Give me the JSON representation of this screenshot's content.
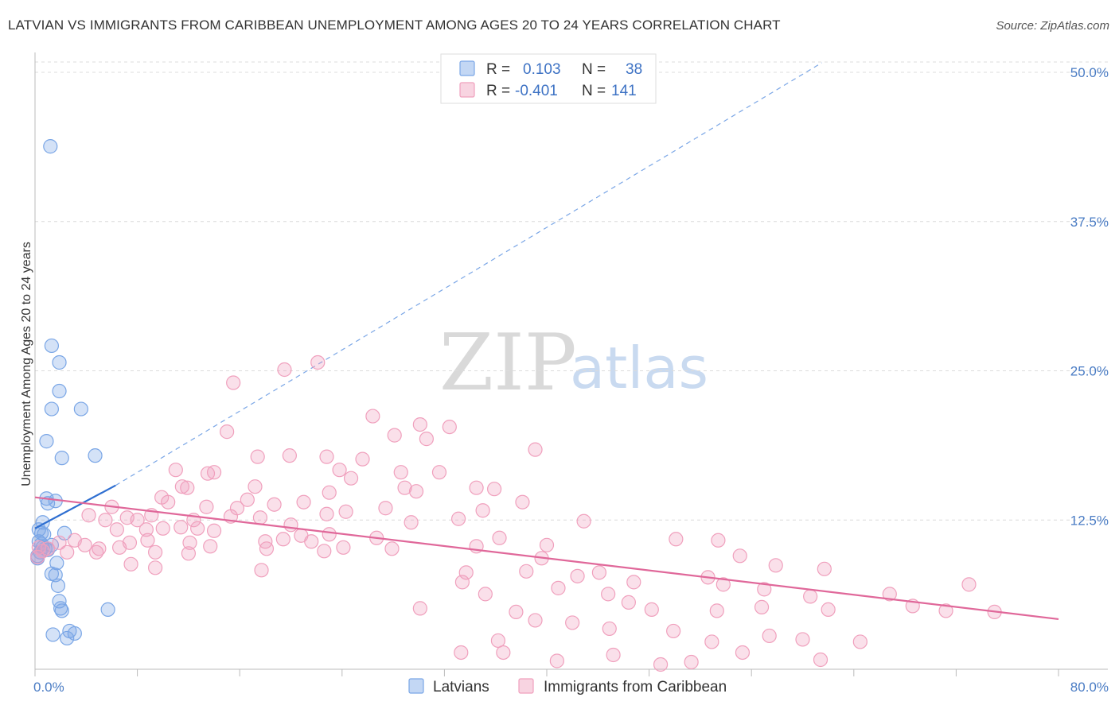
{
  "title": "LATVIAN VS IMMIGRANTS FROM CARIBBEAN UNEMPLOYMENT AMONG AGES 20 TO 24 YEARS CORRELATION CHART",
  "source": "Source: ZipAtlas.com",
  "watermark": {
    "zip": "ZIP",
    "atlas": "atlas"
  },
  "legend": {
    "r_label": "R =",
    "n_label": "N =",
    "rows": [
      {
        "r": "0.103",
        "n": "38",
        "color": "#7aa6e6"
      },
      {
        "r": "-0.401",
        "n": "141",
        "color": "#f0a0bd"
      }
    ]
  },
  "chart_data": {
    "type": "scatter",
    "xlabel": "",
    "ylabel": "Unemployment Among Ages 20 to 24 years",
    "xlim": [
      0,
      80
    ],
    "ylim": [
      0,
      50
    ],
    "x_tick_labels": [
      "0.0%",
      "80.0%"
    ],
    "y_tick_labels": [
      "12.5%",
      "25.0%",
      "37.5%",
      "50.0%"
    ],
    "y_ticks": [
      12.5,
      25,
      37.5,
      50
    ],
    "grid": true,
    "legend_placement": "top-center",
    "series": [
      {
        "name": "Latvians",
        "color": "#7aa6e6",
        "trend": {
          "x": [
            0,
            6.3
          ],
          "y": [
            11.8,
            15.4
          ],
          "extended": {
            "x": [
              6.3,
              61.5
            ],
            "y": [
              15.4,
              50.8
            ]
          }
        },
        "points": [
          [
            1.2,
            43.8
          ],
          [
            1.3,
            27.1
          ],
          [
            1.9,
            25.7
          ],
          [
            1.9,
            23.3
          ],
          [
            1.3,
            21.8
          ],
          [
            3.6,
            21.8
          ],
          [
            0.9,
            19.1
          ],
          [
            2.1,
            17.7
          ],
          [
            4.7,
            17.9
          ],
          [
            0.9,
            14.3
          ],
          [
            1.0,
            13.9
          ],
          [
            1.6,
            14.1
          ],
          [
            0.6,
            12.3
          ],
          [
            0.3,
            11.7
          ],
          [
            0.5,
            11.4
          ],
          [
            0.7,
            11.3
          ],
          [
            2.3,
            11.4
          ],
          [
            0.3,
            10.7
          ],
          [
            0.5,
            10.5
          ],
          [
            0.6,
            10.2
          ],
          [
            0.8,
            10.1
          ],
          [
            1.0,
            10.0
          ],
          [
            1.3,
            10.4
          ],
          [
            0.4,
            9.8
          ],
          [
            0.2,
            9.5
          ],
          [
            1.7,
            8.9
          ],
          [
            1.3,
            8.0
          ],
          [
            1.6,
            7.9
          ],
          [
            1.8,
            7.0
          ],
          [
            1.9,
            5.7
          ],
          [
            2.0,
            5.1
          ],
          [
            2.1,
            4.9
          ],
          [
            5.7,
            5.0
          ],
          [
            2.7,
            3.2
          ],
          [
            3.1,
            3.0
          ],
          [
            1.4,
            2.9
          ],
          [
            2.5,
            2.6
          ],
          [
            0.2,
            9.3
          ]
        ]
      },
      {
        "name": "Immigrants from Caribbean",
        "color": "#f0a0bd",
        "trend": {
          "x": [
            0,
            80
          ],
          "y": [
            14.4,
            4.2
          ]
        },
        "points": [
          [
            22.1,
            25.7
          ],
          [
            19.5,
            25.1
          ],
          [
            15.5,
            24.0
          ],
          [
            26.4,
            21.2
          ],
          [
            30.1,
            20.5
          ],
          [
            32.4,
            20.3
          ],
          [
            30.6,
            19.3
          ],
          [
            28.1,
            19.6
          ],
          [
            15.0,
            19.9
          ],
          [
            39.1,
            18.4
          ],
          [
            17.4,
            17.8
          ],
          [
            19.9,
            17.9
          ],
          [
            22.8,
            17.8
          ],
          [
            25.6,
            17.6
          ],
          [
            11.0,
            16.7
          ],
          [
            13.5,
            16.4
          ],
          [
            14.0,
            16.5
          ],
          [
            23.8,
            16.7
          ],
          [
            28.6,
            16.5
          ],
          [
            31.6,
            16.5
          ],
          [
            24.7,
            16.0
          ],
          [
            10.4,
            14.0
          ],
          [
            11.9,
            15.2
          ],
          [
            11.5,
            15.3
          ],
          [
            17.2,
            15.3
          ],
          [
            34.5,
            15.2
          ],
          [
            28.9,
            15.2
          ],
          [
            29.8,
            14.9
          ],
          [
            35.9,
            15.1
          ],
          [
            23.0,
            14.8
          ],
          [
            9.9,
            14.4
          ],
          [
            16.6,
            14.2
          ],
          [
            21.0,
            14.0
          ],
          [
            38.1,
            14.0
          ],
          [
            6.0,
            13.6
          ],
          [
            13.4,
            13.6
          ],
          [
            15.8,
            13.5
          ],
          [
            18.7,
            13.8
          ],
          [
            27.4,
            13.5
          ],
          [
            35.0,
            13.3
          ],
          [
            24.3,
            13.2
          ],
          [
            22.8,
            13.0
          ],
          [
            33.1,
            12.6
          ],
          [
            4.2,
            12.9
          ],
          [
            5.5,
            12.5
          ],
          [
            7.2,
            12.7
          ],
          [
            8.0,
            12.5
          ],
          [
            9.1,
            12.9
          ],
          [
            12.4,
            12.5
          ],
          [
            15.3,
            12.8
          ],
          [
            17.6,
            12.7
          ],
          [
            20.0,
            12.1
          ],
          [
            29.4,
            12.3
          ],
          [
            42.9,
            12.4
          ],
          [
            6.4,
            11.7
          ],
          [
            8.7,
            11.7
          ],
          [
            10.0,
            11.8
          ],
          [
            11.4,
            11.9
          ],
          [
            12.7,
            11.8
          ],
          [
            14.0,
            11.6
          ],
          [
            20.8,
            11.2
          ],
          [
            23.0,
            11.3
          ],
          [
            26.7,
            11.0
          ],
          [
            36.3,
            11.0
          ],
          [
            40.0,
            10.4
          ],
          [
            50.1,
            10.9
          ],
          [
            53.4,
            10.8
          ],
          [
            3.9,
            10.4
          ],
          [
            5.0,
            10.1
          ],
          [
            6.6,
            10.2
          ],
          [
            7.4,
            10.6
          ],
          [
            8.8,
            10.8
          ],
          [
            12.1,
            10.6
          ],
          [
            13.7,
            10.3
          ],
          [
            18.0,
            10.7
          ],
          [
            19.4,
            10.9
          ],
          [
            21.6,
            10.7
          ],
          [
            24.1,
            10.2
          ],
          [
            3.1,
            10.8
          ],
          [
            2.5,
            9.8
          ],
          [
            1.9,
            10.6
          ],
          [
            1.0,
            10.1
          ],
          [
            0.6,
            9.9
          ],
          [
            0.3,
            10.2
          ],
          [
            0.2,
            9.4
          ],
          [
            4.8,
            9.8
          ],
          [
            9.4,
            9.8
          ],
          [
            12.0,
            9.7
          ],
          [
            18.1,
            10.1
          ],
          [
            22.6,
            9.9
          ],
          [
            27.9,
            10.1
          ],
          [
            34.5,
            10.3
          ],
          [
            39.6,
            9.3
          ],
          [
            55.1,
            9.5
          ],
          [
            57.9,
            8.7
          ],
          [
            61.7,
            8.4
          ],
          [
            7.5,
            8.8
          ],
          [
            9.4,
            8.5
          ],
          [
            17.7,
            8.3
          ],
          [
            33.7,
            8.1
          ],
          [
            38.4,
            8.2
          ],
          [
            42.4,
            7.8
          ],
          [
            44.1,
            8.1
          ],
          [
            46.8,
            7.3
          ],
          [
            33.4,
            7.3
          ],
          [
            52.6,
            7.7
          ],
          [
            53.8,
            7.1
          ],
          [
            35.2,
            6.3
          ],
          [
            40.9,
            6.8
          ],
          [
            44.8,
            6.3
          ],
          [
            57.0,
            6.7
          ],
          [
            60.6,
            6.1
          ],
          [
            66.8,
            6.3
          ],
          [
            73.0,
            7.1
          ],
          [
            30.1,
            5.1
          ],
          [
            37.6,
            4.8
          ],
          [
            39.1,
            4.1
          ],
          [
            46.4,
            5.6
          ],
          [
            48.2,
            5.0
          ],
          [
            53.3,
            4.9
          ],
          [
            56.8,
            5.2
          ],
          [
            62.0,
            5.0
          ],
          [
            68.6,
            5.3
          ],
          [
            71.2,
            4.9
          ],
          [
            75.0,
            4.8
          ],
          [
            42.0,
            3.9
          ],
          [
            44.9,
            3.4
          ],
          [
            49.9,
            3.2
          ],
          [
            52.9,
            2.3
          ],
          [
            57.4,
            2.8
          ],
          [
            60.0,
            2.5
          ],
          [
            64.5,
            2.3
          ],
          [
            33.3,
            1.4
          ],
          [
            36.6,
            1.4
          ],
          [
            40.8,
            0.7
          ],
          [
            45.2,
            1.2
          ],
          [
            51.3,
            0.6
          ],
          [
            55.3,
            1.4
          ],
          [
            61.4,
            0.8
          ],
          [
            36.2,
            2.4
          ],
          [
            48.9,
            0.4
          ]
        ]
      }
    ]
  }
}
